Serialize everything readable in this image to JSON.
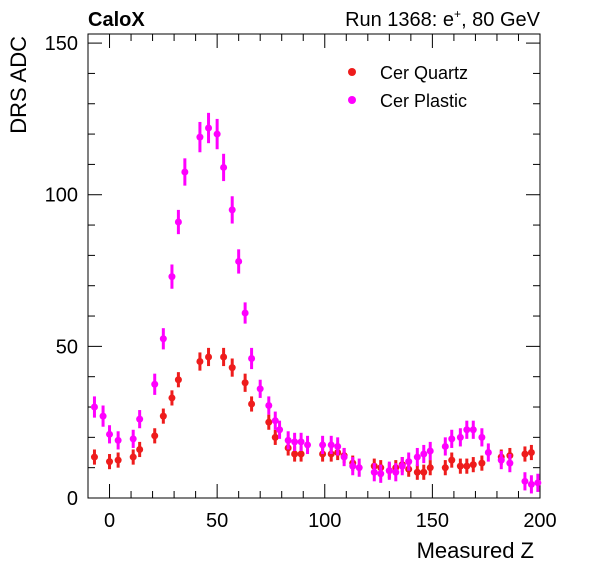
{
  "header": {
    "brand": "CaloX",
    "run_label": "Run 1368: e",
    "run_superscript": "+",
    "run_energy": ", 80 GeV"
  },
  "chart_data": {
    "type": "scatter",
    "title": "",
    "xlabel": "Measured Z",
    "ylabel": "DRS ADC",
    "xlim": [
      -10,
      200
    ],
    "ylim": [
      0,
      153
    ],
    "x_ticks": [
      0,
      50,
      100,
      150,
      200
    ],
    "y_ticks": [
      0,
      50,
      100,
      150
    ],
    "grid": false,
    "legend_position": "top-right",
    "x": [
      -7,
      -3,
      0,
      4,
      11,
      14,
      21,
      25,
      29,
      32,
      35,
      42,
      46,
      50,
      53,
      57,
      60,
      63,
      66,
      70,
      74,
      77,
      79,
      83,
      86,
      89,
      92,
      99,
      103,
      106,
      109,
      113,
      116,
      123,
      126,
      130,
      133,
      136,
      139,
      143,
      146,
      149,
      156,
      159,
      163,
      166,
      169,
      173,
      176,
      182,
      186,
      193,
      196,
      199
    ],
    "series": [
      {
        "name": "Cer Quartz",
        "color": "#ee1c1c",
        "values": [
          13.5,
          null,
          12,
          12.5,
          13.5,
          16,
          20.5,
          27,
          33,
          39,
          null,
          45,
          46.5,
          null,
          46.5,
          43,
          null,
          38,
          31,
          null,
          25,
          20,
          null,
          16.5,
          14.5,
          14.5,
          null,
          14.5,
          14.5,
          15,
          14,
          11.5,
          null,
          10.5,
          10,
          9,
          10,
          11,
          9.5,
          8.5,
          8.5,
          10,
          10,
          12.5,
          10.5,
          10.5,
          11,
          11.5,
          null,
          13.5,
          14,
          14.5,
          15,
          null
        ],
        "errors": [
          2.5,
          null,
          2.5,
          2.5,
          2.5,
          2.5,
          2.5,
          2.5,
          2.5,
          2.5,
          null,
          3,
          3,
          null,
          3,
          3,
          null,
          3,
          2.5,
          null,
          2.5,
          2.5,
          null,
          2.5,
          2.5,
          2.5,
          null,
          2.5,
          2.5,
          2.5,
          2.5,
          2.5,
          null,
          2.5,
          2.5,
          2.5,
          2.5,
          2.5,
          2.5,
          2.5,
          2.5,
          2.5,
          2.5,
          2.5,
          2.5,
          2.5,
          2.5,
          2.5,
          null,
          2.5,
          2.5,
          2.5,
          2.5,
          null
        ]
      },
      {
        "name": "Cer Plastic",
        "color": "#ff00ff",
        "values": [
          30,
          27,
          21,
          19,
          19.5,
          26,
          37.5,
          52.5,
          73,
          91,
          107.5,
          119,
          122,
          120,
          109,
          95,
          78,
          61,
          46,
          36,
          30.5,
          25.5,
          22.5,
          19,
          18.5,
          18.5,
          17.5,
          17.5,
          17.5,
          17,
          13.5,
          10.5,
          10,
          8.5,
          8,
          9,
          8.5,
          10.5,
          12,
          13.5,
          14.5,
          15.5,
          17,
          19.5,
          20,
          22.5,
          22.5,
          20,
          15,
          12.5,
          11.5,
          5.5,
          4.5,
          5
        ]
      }
    ],
    "plastic_errors": [
      3.5,
      3.5,
      3,
      3,
      3,
      3,
      3.5,
      3.5,
      4,
      4,
      4.5,
      5,
      5,
      5,
      4.5,
      4.5,
      4,
      3.5,
      3.5,
      3,
      3,
      3,
      3,
      3,
      3,
      3,
      3,
      3,
      3,
      3,
      3,
      3,
      3,
      3,
      3,
      3,
      3,
      3,
      3,
      3,
      3,
      3,
      3,
      3,
      3,
      3,
      3,
      3,
      3,
      3,
      3,
      3,
      3,
      3
    ]
  }
}
